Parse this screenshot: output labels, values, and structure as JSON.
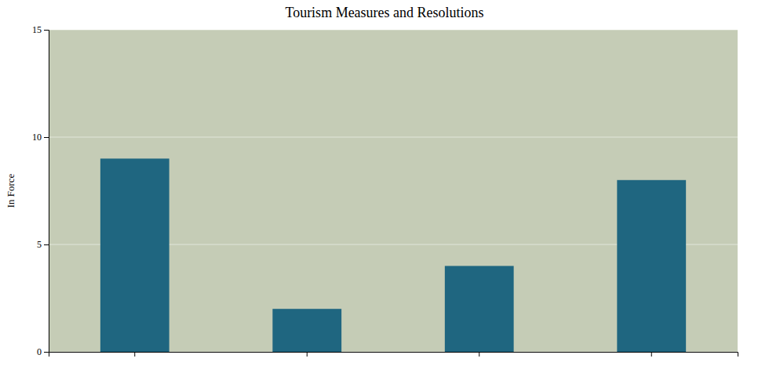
{
  "chart_data": {
    "type": "bar",
    "title": "Tourism Measures and Resolutions",
    "ylabel": "In Force",
    "categories": [
      null,
      null,
      null,
      null
    ],
    "values": [
      9,
      2,
      4,
      8
    ],
    "color": "#1f6680",
    "ylim": [
      0,
      15
    ],
    "yticks": [
      0,
      5,
      10,
      15
    ]
  }
}
